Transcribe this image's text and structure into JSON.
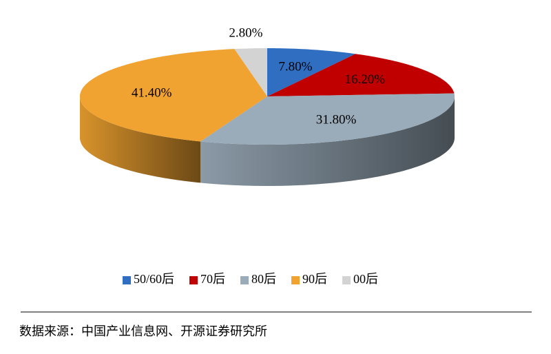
{
  "chart_data": {
    "type": "pie3d",
    "categories": [
      "50/60后",
      "70后",
      "80后",
      "90后",
      "00后"
    ],
    "values": [
      7.8,
      16.2,
      31.8,
      41.4,
      2.8
    ],
    "value_labels": [
      "7.80%",
      "16.20%",
      "31.80%",
      "41.40%",
      "2.80%"
    ],
    "colors": [
      "#2f6ec0",
      "#c00000",
      "#9aabb9",
      "#f0a330",
      "#d3d3d3"
    ],
    "legend": "bottom",
    "source": "数据来源：中国产业信息网、开源证券研究所"
  }
}
